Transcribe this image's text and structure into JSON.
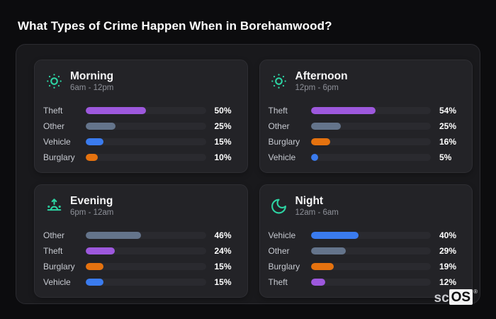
{
  "page_title": "What Types of Crime Happen When in Borehamwood?",
  "brand": {
    "prefix": "sc",
    "suffix": "OS",
    "registered": "®"
  },
  "palette": {
    "Theft": "#9d58dd",
    "Other": "#64748b",
    "Vehicle": "#3a7bee",
    "Burglary": "#e5720f",
    "accent_teal": "#2dd4a3",
    "track": "#2a2a2f",
    "card_bg": "#232327",
    "panel_bg": "#19191c",
    "page_bg": "#0c0c0e"
  },
  "chart_data": [
    {
      "type": "bar",
      "orientation": "horizontal",
      "title": "Morning",
      "subtitle": "6am - 12pm",
      "icon": "sun-icon",
      "categories": [
        "Theft",
        "Other",
        "Vehicle",
        "Burglary"
      ],
      "values": [
        50,
        25,
        15,
        10
      ],
      "value_labels": [
        "50%",
        "25%",
        "15%",
        "10%"
      ],
      "xlim": [
        0,
        100
      ],
      "grid": false,
      "legend": false
    },
    {
      "type": "bar",
      "orientation": "horizontal",
      "title": "Afternoon",
      "subtitle": "12pm - 6pm",
      "icon": "sun-icon",
      "categories": [
        "Theft",
        "Other",
        "Burglary",
        "Vehicle"
      ],
      "values": [
        54,
        25,
        16,
        5
      ],
      "value_labels": [
        "54%",
        "25%",
        "16%",
        "5%"
      ],
      "xlim": [
        0,
        100
      ],
      "grid": false,
      "legend": false
    },
    {
      "type": "bar",
      "orientation": "horizontal",
      "title": "Evening",
      "subtitle": "6pm - 12am",
      "icon": "sunrise-icon",
      "categories": [
        "Other",
        "Theft",
        "Burglary",
        "Vehicle"
      ],
      "values": [
        46,
        24,
        15,
        15
      ],
      "value_labels": [
        "46%",
        "24%",
        "15%",
        "15%"
      ],
      "xlim": [
        0,
        100
      ],
      "grid": false,
      "legend": false
    },
    {
      "type": "bar",
      "orientation": "horizontal",
      "title": "Night",
      "subtitle": "12am - 6am",
      "icon": "moon-icon",
      "categories": [
        "Vehicle",
        "Other",
        "Burglary",
        "Theft"
      ],
      "values": [
        40,
        29,
        19,
        12
      ],
      "value_labels": [
        "40%",
        "29%",
        "19%",
        "12%"
      ],
      "xlim": [
        0,
        100
      ],
      "grid": false,
      "legend": false
    }
  ]
}
